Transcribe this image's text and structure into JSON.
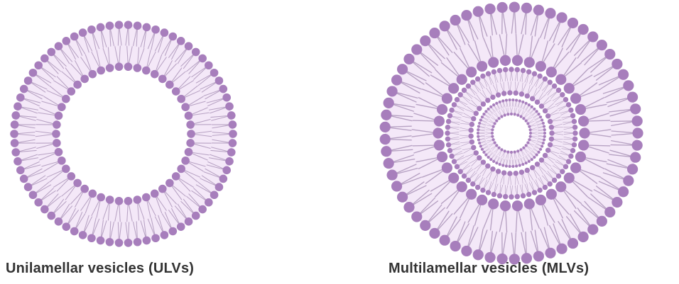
{
  "colors": {
    "head": "#a77ebc",
    "tail": "#b7a2c3",
    "fill": "#f4e8f8",
    "caption": "#333333"
  },
  "vesicles": [
    {
      "id": "ulv",
      "caption": "Unilamellar vesicles (ULVs)",
      "bilayer_count": 1
    },
    {
      "id": "mlv",
      "caption": "Multilamellar vesicles (MLVs)",
      "bilayer_count": 3
    }
  ]
}
